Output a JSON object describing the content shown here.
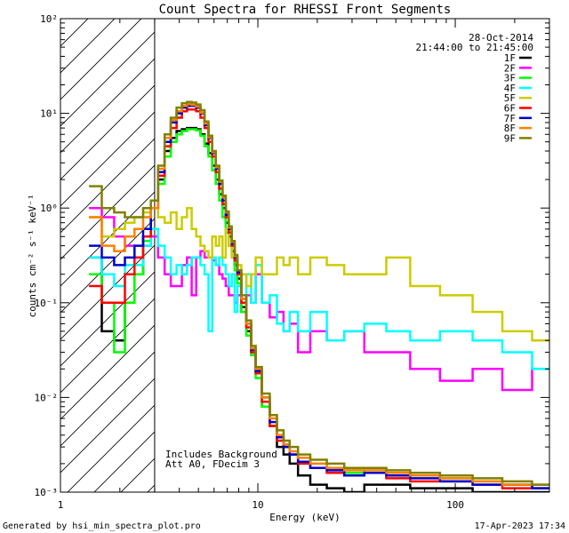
{
  "chart_data": {
    "type": "line",
    "title": "Count Spectra for RHESSI Front Segments",
    "xlabel": "Energy (keV)",
    "ylabel": "counts cm⁻² s⁻¹ keV⁻¹",
    "xscale": "log",
    "yscale": "log",
    "xlim": [
      1,
      300
    ],
    "ylim": [
      0.001,
      100
    ],
    "x_ticks": [
      {
        "value": 1,
        "label": "1"
      },
      {
        "value": 10,
        "label": "10"
      },
      {
        "value": 100,
        "label": "100"
      }
    ],
    "y_ticks": [
      {
        "value": 100,
        "label": "10²"
      },
      {
        "value": 10,
        "label": "10¹"
      },
      {
        "value": 1,
        "label": "10⁰"
      },
      {
        "value": 0.1,
        "label": "10⁻¹"
      },
      {
        "value": 0.01,
        "label": "10⁻²"
      },
      {
        "value": 0.001,
        "label": "10⁻³"
      }
    ],
    "date": "28-Oct-2014",
    "time_range": "21:44:00 to 21:45:00",
    "annotations": [
      "Includes Background",
      "Att A0, FDecim 3"
    ],
    "excluded_region": {
      "from_keV": 1,
      "to_keV": 3,
      "style": "hatched"
    },
    "x": [
      1.5,
      1.75,
      2.0,
      2.25,
      2.5,
      2.75,
      3.0,
      3.25,
      3.5,
      3.75,
      4.0,
      4.25,
      4.5,
      4.75,
      5.0,
      5.25,
      5.5,
      5.75,
      6.0,
      6.25,
      6.5,
      6.75,
      7.0,
      7.25,
      7.5,
      7.75,
      8.0,
      8.5,
      9.0,
      9.5,
      10.0,
      11.0,
      12.0,
      13.0,
      14.0,
      15.0,
      17.0,
      20.0,
      25.0,
      30.0,
      40.0,
      50.0,
      70.0,
      100.0,
      150.0,
      200.0,
      300.0
    ],
    "series": [
      {
        "name": "1F",
        "color": "#000000",
        "values": [
          0.3,
          0.05,
          0.04,
          0.1,
          0.2,
          0.5,
          1.0,
          2.0,
          4.0,
          5.5,
          6.5,
          6.8,
          7.0,
          7.0,
          6.8,
          6.0,
          4.8,
          3.8,
          2.8,
          2.0,
          1.4,
          1.0,
          0.7,
          0.5,
          0.35,
          0.25,
          0.18,
          0.09,
          0.05,
          0.03,
          0.018,
          0.008,
          0.005,
          0.003,
          0.0025,
          0.002,
          0.0015,
          0.0012,
          0.0011,
          0.001,
          0.0012,
          0.0012,
          0.0011,
          0.0011,
          0.001,
          0.001,
          0.001
        ]
      },
      {
        "name": "2F",
        "color": "#ff00ff",
        "values": [
          1.0,
          0.8,
          0.5,
          0.4,
          0.3,
          0.4,
          0.5,
          0.3,
          0.2,
          0.15,
          0.15,
          0.25,
          0.3,
          0.12,
          0.3,
          0.35,
          0.3,
          0.3,
          0.28,
          0.25,
          0.2,
          0.18,
          0.15,
          0.12,
          0.12,
          0.1,
          0.12,
          0.08,
          0.12,
          0.1,
          0.2,
          0.1,
          0.07,
          0.08,
          0.05,
          0.06,
          0.03,
          0.05,
          0.04,
          0.05,
          0.03,
          0.03,
          0.02,
          0.015,
          0.02,
          0.012,
          0.02
        ]
      },
      {
        "name": "3F",
        "color": "#00ff00",
        "values": [
          0.2,
          0.1,
          0.03,
          0.1,
          0.2,
          0.45,
          1.0,
          1.8,
          3.5,
          5.0,
          6.0,
          6.5,
          6.8,
          6.8,
          6.6,
          5.8,
          4.5,
          3.5,
          2.5,
          1.8,
          1.2,
          0.8,
          0.55,
          0.4,
          0.3,
          0.22,
          0.16,
          0.08,
          0.045,
          0.028,
          0.016,
          0.008,
          0.005,
          0.004,
          0.003,
          0.0025,
          0.002,
          0.002,
          0.0018,
          0.0016,
          0.0018,
          0.0015,
          0.0015,
          0.0014,
          0.0013,
          0.0012,
          0.0011
        ]
      },
      {
        "name": "4F",
        "color": "#00ffff",
        "values": [
          0.3,
          0.2,
          0.15,
          0.25,
          0.25,
          0.4,
          0.6,
          0.4,
          0.3,
          0.2,
          0.25,
          0.2,
          0.25,
          0.3,
          0.3,
          0.25,
          0.2,
          0.05,
          0.3,
          0.25,
          0.3,
          0.25,
          0.2,
          0.15,
          0.2,
          0.08,
          0.15,
          0.1,
          0.2,
          0.1,
          0.25,
          0.1,
          0.12,
          0.06,
          0.05,
          0.08,
          0.05,
          0.08,
          0.04,
          0.05,
          0.06,
          0.05,
          0.04,
          0.05,
          0.04,
          0.03,
          0.02
        ]
      },
      {
        "name": "5F",
        "color": "#cccc00",
        "values": [
          0.8,
          0.5,
          0.6,
          0.7,
          0.8,
          0.9,
          1.0,
          0.8,
          0.7,
          0.9,
          0.6,
          0.8,
          1.0,
          0.6,
          0.5,
          0.4,
          0.35,
          0.3,
          0.5,
          0.4,
          0.5,
          0.3,
          0.6,
          0.4,
          0.3,
          0.3,
          0.25,
          0.2,
          0.15,
          0.2,
          0.3,
          0.2,
          0.2,
          0.3,
          0.25,
          0.3,
          0.2,
          0.3,
          0.25,
          0.2,
          0.2,
          0.3,
          0.15,
          0.12,
          0.08,
          0.05,
          0.04
        ]
      },
      {
        "name": "6F",
        "color": "#ff0000",
        "values": [
          0.15,
          0.1,
          0.1,
          0.2,
          0.3,
          0.5,
          1.0,
          2.2,
          4.5,
          7.0,
          9.0,
          10.5,
          11.0,
          11.0,
          10.5,
          9.0,
          7.0,
          5.0,
          3.5,
          2.4,
          1.6,
          1.1,
          0.8,
          0.55,
          0.4,
          0.28,
          0.2,
          0.1,
          0.055,
          0.03,
          0.018,
          0.009,
          0.005,
          0.0035,
          0.003,
          0.0025,
          0.002,
          0.0018,
          0.0016,
          0.0015,
          0.0016,
          0.0014,
          0.0013,
          0.0013,
          0.0012,
          0.0011,
          0.0011
        ]
      },
      {
        "name": "7F",
        "color": "#0000cc",
        "values": [
          0.4,
          0.3,
          0.25,
          0.3,
          0.4,
          0.6,
          1.0,
          2.4,
          5.0,
          8.0,
          10.0,
          11.5,
          12.0,
          12.0,
          11.5,
          10.0,
          7.5,
          5.5,
          3.8,
          2.6,
          1.8,
          1.2,
          0.85,
          0.6,
          0.42,
          0.3,
          0.21,
          0.11,
          0.06,
          0.032,
          0.019,
          0.01,
          0.0055,
          0.0038,
          0.003,
          0.0025,
          0.0021,
          0.0018,
          0.0017,
          0.0015,
          0.0016,
          0.0015,
          0.0014,
          0.0013,
          0.0012,
          0.0012,
          0.0011
        ]
      },
      {
        "name": "8F",
        "color": "#ff8000",
        "values": [
          0.8,
          0.4,
          0.35,
          0.5,
          0.6,
          0.8,
          1.0,
          2.6,
          5.5,
          8.5,
          10.5,
          12.0,
          12.5,
          12.3,
          11.8,
          10.2,
          7.8,
          5.6,
          3.9,
          2.7,
          1.9,
          1.3,
          0.9,
          0.62,
          0.44,
          0.31,
          0.22,
          0.11,
          0.06,
          0.033,
          0.02,
          0.01,
          0.006,
          0.004,
          0.0032,
          0.0027,
          0.0023,
          0.002,
          0.0018,
          0.0017,
          0.0017,
          0.0016,
          0.0015,
          0.0014,
          0.0013,
          0.0012,
          0.0012
        ]
      },
      {
        "name": "9F",
        "color": "#808000",
        "values": [
          1.7,
          1.0,
          0.9,
          0.8,
          0.8,
          1.0,
          1.2,
          2.8,
          6.0,
          9.0,
          11.5,
          12.8,
          13.2,
          13.0,
          12.4,
          10.8,
          8.2,
          5.8,
          4.0,
          2.8,
          1.95,
          1.35,
          0.92,
          0.64,
          0.45,
          0.32,
          0.22,
          0.12,
          0.065,
          0.035,
          0.021,
          0.011,
          0.0065,
          0.0045,
          0.0035,
          0.003,
          0.0025,
          0.0022,
          0.002,
          0.0018,
          0.0018,
          0.0017,
          0.0016,
          0.0015,
          0.0014,
          0.0013,
          0.0012
        ]
      }
    ]
  },
  "footer": {
    "generated_by": "Generated by hsi_min_spectra_plot.pro",
    "timestamp": "17-Apr-2023 17:34"
  }
}
